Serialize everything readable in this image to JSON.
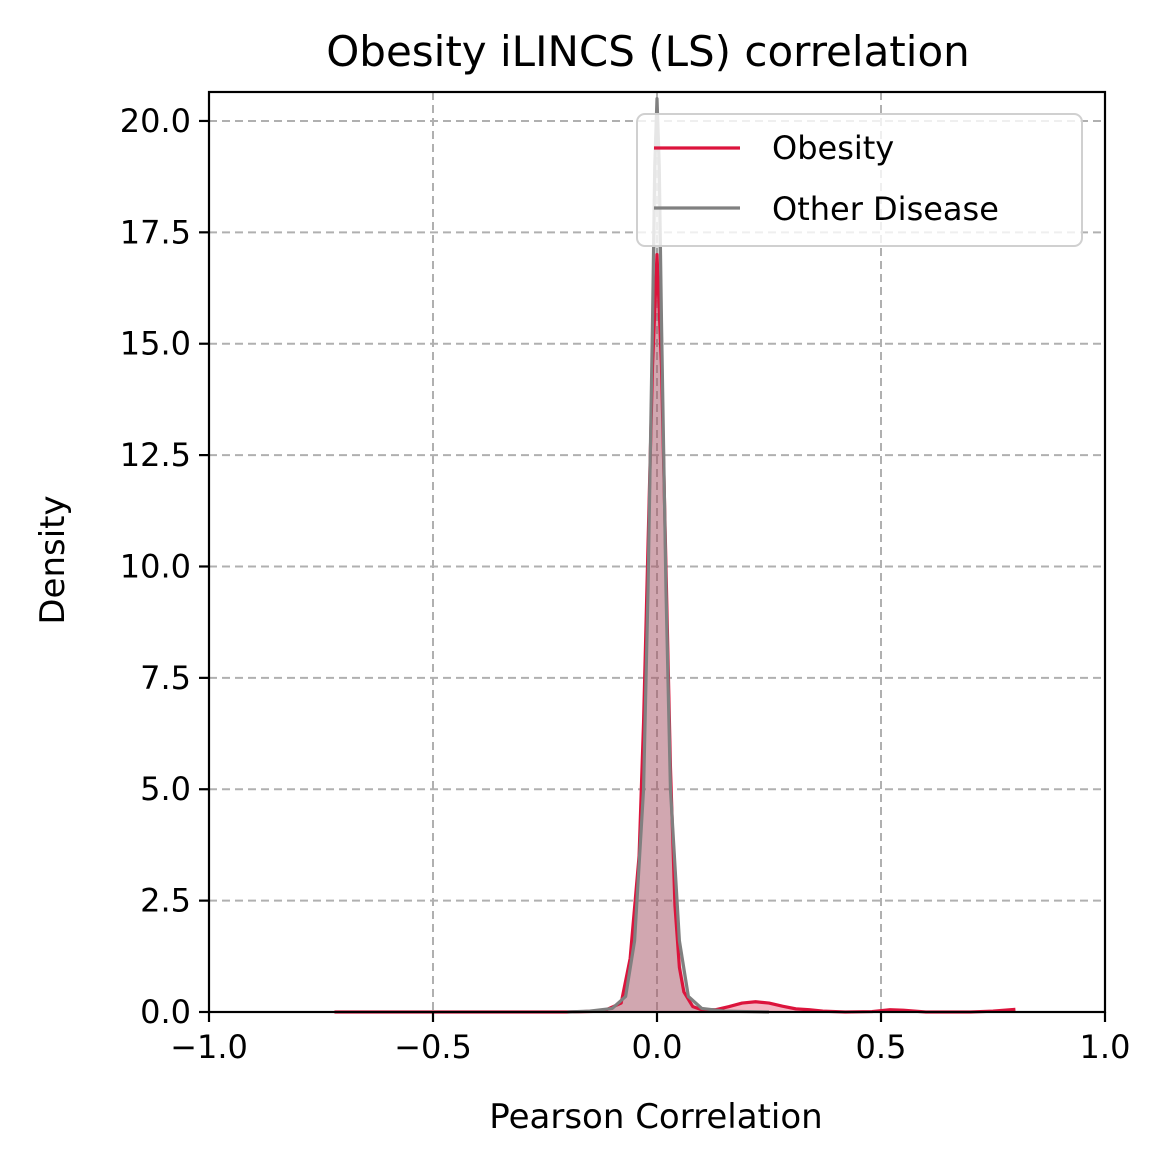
{
  "chart_data": {
    "type": "area",
    "title": "Obesity iLINCS (LS) correlation",
    "xlabel": "Pearson Correlation",
    "ylabel": "Density",
    "xlim": [
      -1.0,
      1.0
    ],
    "ylim": [
      0,
      20.65
    ],
    "xticks": [
      -1.0,
      -0.5,
      0.0,
      0.5,
      1.0
    ],
    "xtick_labels": [
      "−1.0",
      "−0.5",
      "0.0",
      "0.5",
      "1.0"
    ],
    "yticks": [
      0.0,
      2.5,
      5.0,
      7.5,
      10.0,
      12.5,
      15.0,
      17.5,
      20.0
    ],
    "ytick_labels": [
      "0.0",
      "2.5",
      "5.0",
      "7.5",
      "10.0",
      "12.5",
      "15.0",
      "17.5",
      "20.0"
    ],
    "grid": true,
    "legend_position": "top-right",
    "series": [
      {
        "name": "Obesity",
        "color": "#dc143c",
        "fill": "#dc143c",
        "x": [
          -0.72,
          -0.4,
          -0.2,
          -0.12,
          -0.08,
          -0.06,
          -0.04,
          -0.03,
          -0.02,
          -0.01,
          0.0,
          0.01,
          0.02,
          0.03,
          0.04,
          0.05,
          0.06,
          0.08,
          0.1,
          0.13,
          0.16,
          0.19,
          0.22,
          0.25,
          0.28,
          0.31,
          0.34,
          0.37,
          0.42,
          0.48,
          0.52,
          0.55,
          0.6,
          0.7,
          0.75,
          0.8
        ],
        "y": [
          0.0,
          0.0,
          0.0,
          0.02,
          0.2,
          1.2,
          3.5,
          6.5,
          10.5,
          14.5,
          17.0,
          14.5,
          10.0,
          5.5,
          2.4,
          1.0,
          0.45,
          0.12,
          0.05,
          0.05,
          0.12,
          0.2,
          0.23,
          0.2,
          0.13,
          0.07,
          0.05,
          0.02,
          0.0,
          0.01,
          0.05,
          0.04,
          0.0,
          0.0,
          0.02,
          0.06
        ]
      },
      {
        "name": "Other Disease",
        "color": "#808080",
        "fill": "#808080",
        "x": [
          -0.2,
          -0.15,
          -0.1,
          -0.07,
          -0.05,
          -0.03,
          -0.02,
          -0.01,
          -0.005,
          0.0,
          0.005,
          0.01,
          0.02,
          0.03,
          0.05,
          0.07,
          0.1,
          0.15,
          0.2,
          0.25
        ],
        "y": [
          0.0,
          0.02,
          0.08,
          0.35,
          1.6,
          5.0,
          9.5,
          15.5,
          19.0,
          20.5,
          19.0,
          15.5,
          9.5,
          5.0,
          1.6,
          0.35,
          0.08,
          0.02,
          0.01,
          0.0
        ]
      }
    ]
  }
}
